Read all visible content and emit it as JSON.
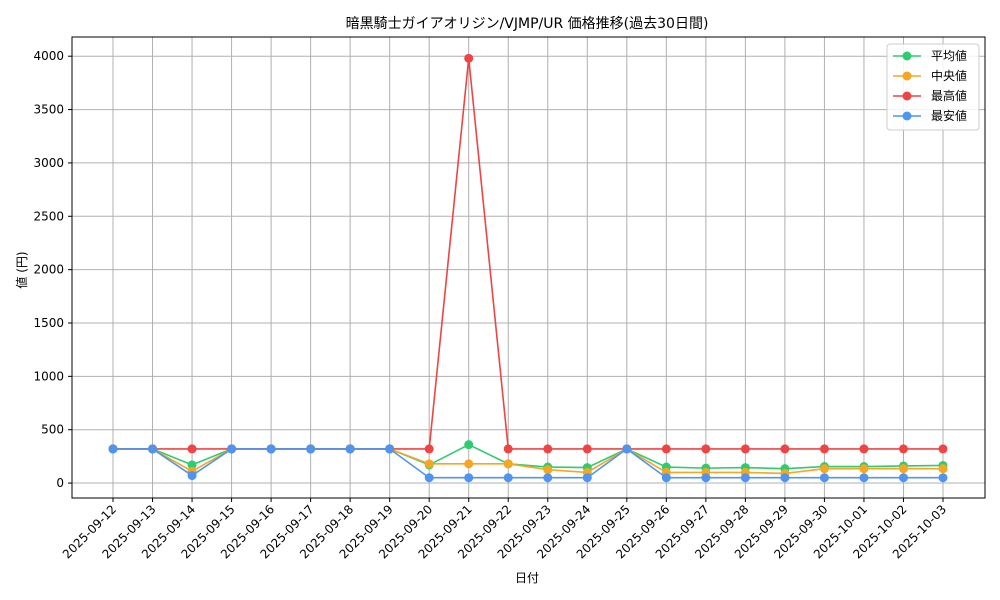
{
  "chart_data": {
    "type": "line",
    "title": "暗黒騎士ガイアオリジン/VJMP/UR 価格推移(過去30日間)",
    "xlabel": "日付",
    "ylabel": "値 (円)",
    "ylim": [
      0,
      4000
    ],
    "yticks": [
      0,
      500,
      1000,
      1500,
      2000,
      2500,
      3000,
      3500,
      4000
    ],
    "grid": true,
    "legend_position": "top-right",
    "categories": [
      "2025-09-12",
      "2025-09-13",
      "2025-09-14",
      "2025-09-15",
      "2025-09-16",
      "2025-09-17",
      "2025-09-18",
      "2025-09-19",
      "2025-09-20",
      "2025-09-21",
      "2025-09-22",
      "2025-09-23",
      "2025-09-24",
      "2025-09-25",
      "2025-09-26",
      "2025-09-27",
      "2025-09-28",
      "2025-09-29",
      "2025-09-30",
      "2025-10-01",
      "2025-10-02",
      "2025-10-03"
    ],
    "series": [
      {
        "name": "平均値",
        "color": "#2ecc71",
        "values": [
          320,
          320,
          170,
          320,
          320,
          320,
          320,
          320,
          170,
          360,
          180,
          150,
          145,
          320,
          150,
          140,
          145,
          135,
          155,
          155,
          160,
          165
        ]
      },
      {
        "name": "中央値",
        "color": "#f5a623",
        "values": [
          320,
          320,
          110,
          320,
          320,
          320,
          320,
          320,
          180,
          180,
          180,
          125,
          100,
          320,
          100,
          100,
          100,
          90,
          135,
          135,
          135,
          135
        ]
      },
      {
        "name": "最高値",
        "color": "#ef4444",
        "values": [
          320,
          320,
          320,
          320,
          320,
          320,
          320,
          320,
          320,
          3980,
          320,
          320,
          320,
          320,
          320,
          320,
          320,
          320,
          320,
          320,
          320,
          320
        ]
      },
      {
        "name": "最安値",
        "color": "#4f94ef",
        "values": [
          320,
          320,
          70,
          320,
          320,
          320,
          320,
          320,
          50,
          50,
          50,
          50,
          50,
          320,
          50,
          50,
          50,
          50,
          50,
          50,
          50,
          50
        ]
      }
    ]
  }
}
